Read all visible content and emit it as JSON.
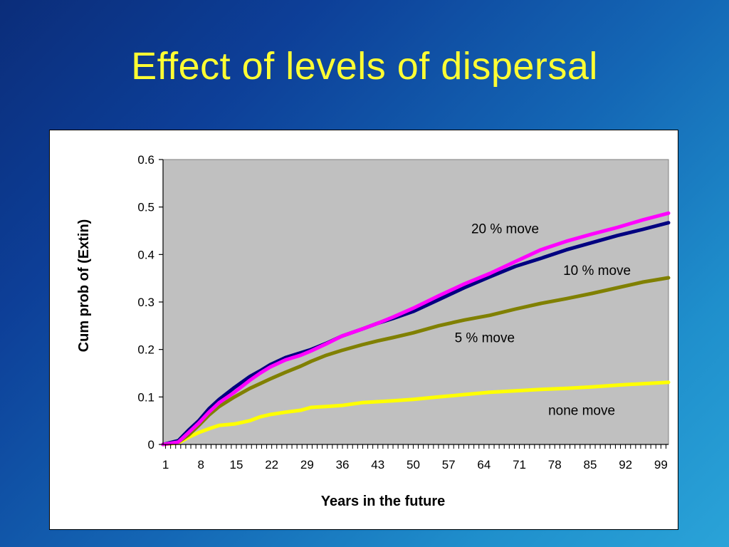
{
  "slide": {
    "title": "Effect of levels of dispersal"
  },
  "chart_data": {
    "type": "line",
    "xlabel": "Years in the future",
    "ylabel": "Cum prob of (Extin)",
    "xlim": [
      1,
      100
    ],
    "ylim": [
      0,
      0.6
    ],
    "yticks": [
      0,
      0.1,
      0.2,
      0.3,
      0.4,
      0.5,
      0.6
    ],
    "ytick_labels": [
      "0",
      "0.1",
      "0.2",
      "0.3",
      "0.4",
      "0.5",
      "0.6"
    ],
    "xtick_labels": [
      "1",
      "8",
      "15",
      "22",
      "29",
      "36",
      "43",
      "50",
      "57",
      "64",
      "71",
      "78",
      "85",
      "92",
      "99"
    ],
    "xtick_values": [
      1,
      8,
      15,
      22,
      29,
      36,
      43,
      50,
      57,
      64,
      71,
      78,
      85,
      92,
      99
    ],
    "grid": false,
    "plot_background": "#c0c0c0",
    "series": [
      {
        "name": "none move",
        "color": "#ffff00",
        "x": [
          1,
          4,
          6,
          8,
          10,
          12,
          15,
          18,
          20,
          22,
          25,
          28,
          30,
          33,
          36,
          38,
          40,
          43,
          46,
          50,
          55,
          60,
          65,
          70,
          75,
          80,
          85,
          90,
          95,
          100
        ],
        "y": [
          0,
          0.003,
          0.015,
          0.025,
          0.033,
          0.04,
          0.043,
          0.05,
          0.058,
          0.063,
          0.068,
          0.072,
          0.078,
          0.08,
          0.082,
          0.085,
          0.088,
          0.09,
          0.092,
          0.095,
          0.1,
          0.105,
          0.11,
          0.113,
          0.116,
          0.118,
          0.121,
          0.125,
          0.128,
          0.131
        ]
      },
      {
        "name": "5 % move",
        "color": "#808000",
        "x": [
          1,
          4,
          6,
          8,
          10,
          12,
          15,
          18,
          20,
          22,
          25,
          28,
          30,
          33,
          36,
          40,
          43,
          46,
          50,
          55,
          60,
          65,
          70,
          75,
          80,
          85,
          90,
          95,
          100
        ],
        "y": [
          0,
          0.005,
          0.02,
          0.04,
          0.062,
          0.08,
          0.1,
          0.118,
          0.128,
          0.138,
          0.152,
          0.165,
          0.175,
          0.188,
          0.198,
          0.21,
          0.218,
          0.225,
          0.235,
          0.25,
          0.262,
          0.272,
          0.285,
          0.297,
          0.307,
          0.318,
          0.33,
          0.342,
          0.351
        ]
      },
      {
        "name": "10 % move",
        "color": "#000080",
        "x": [
          1,
          4,
          6,
          8,
          10,
          12,
          15,
          18,
          20,
          22,
          25,
          28,
          30,
          33,
          36,
          40,
          43,
          46,
          50,
          55,
          60,
          65,
          70,
          75,
          80,
          85,
          90,
          95,
          100
        ],
        "y": [
          0,
          0.008,
          0.03,
          0.05,
          0.075,
          0.095,
          0.12,
          0.143,
          0.155,
          0.168,
          0.183,
          0.193,
          0.2,
          0.213,
          0.228,
          0.243,
          0.255,
          0.265,
          0.28,
          0.305,
          0.33,
          0.353,
          0.375,
          0.392,
          0.41,
          0.425,
          0.44,
          0.453,
          0.467
        ]
      },
      {
        "name": "20 % move",
        "color": "#ff00ff",
        "x": [
          1,
          4,
          6,
          8,
          10,
          12,
          15,
          18,
          20,
          22,
          25,
          28,
          30,
          33,
          36,
          40,
          43,
          46,
          50,
          55,
          60,
          65,
          70,
          75,
          80,
          85,
          90,
          95,
          100
        ],
        "y": [
          0,
          0.005,
          0.025,
          0.045,
          0.068,
          0.088,
          0.11,
          0.135,
          0.15,
          0.163,
          0.178,
          0.188,
          0.197,
          0.212,
          0.228,
          0.243,
          0.255,
          0.268,
          0.287,
          0.313,
          0.338,
          0.36,
          0.385,
          0.41,
          0.428,
          0.443,
          0.457,
          0.473,
          0.487
        ]
      }
    ],
    "annotations": [
      {
        "text": "20 % move",
        "series": "20 % move",
        "x": 68,
        "y": 0.445
      },
      {
        "text": "10 % move",
        "series": "10 % move",
        "x": 86,
        "y": 0.357
      },
      {
        "text": "5 % move",
        "series": "5 % move",
        "x": 64,
        "y": 0.215
      },
      {
        "text": "none move",
        "series": "none move",
        "x": 83,
        "y": 0.062
      }
    ]
  }
}
